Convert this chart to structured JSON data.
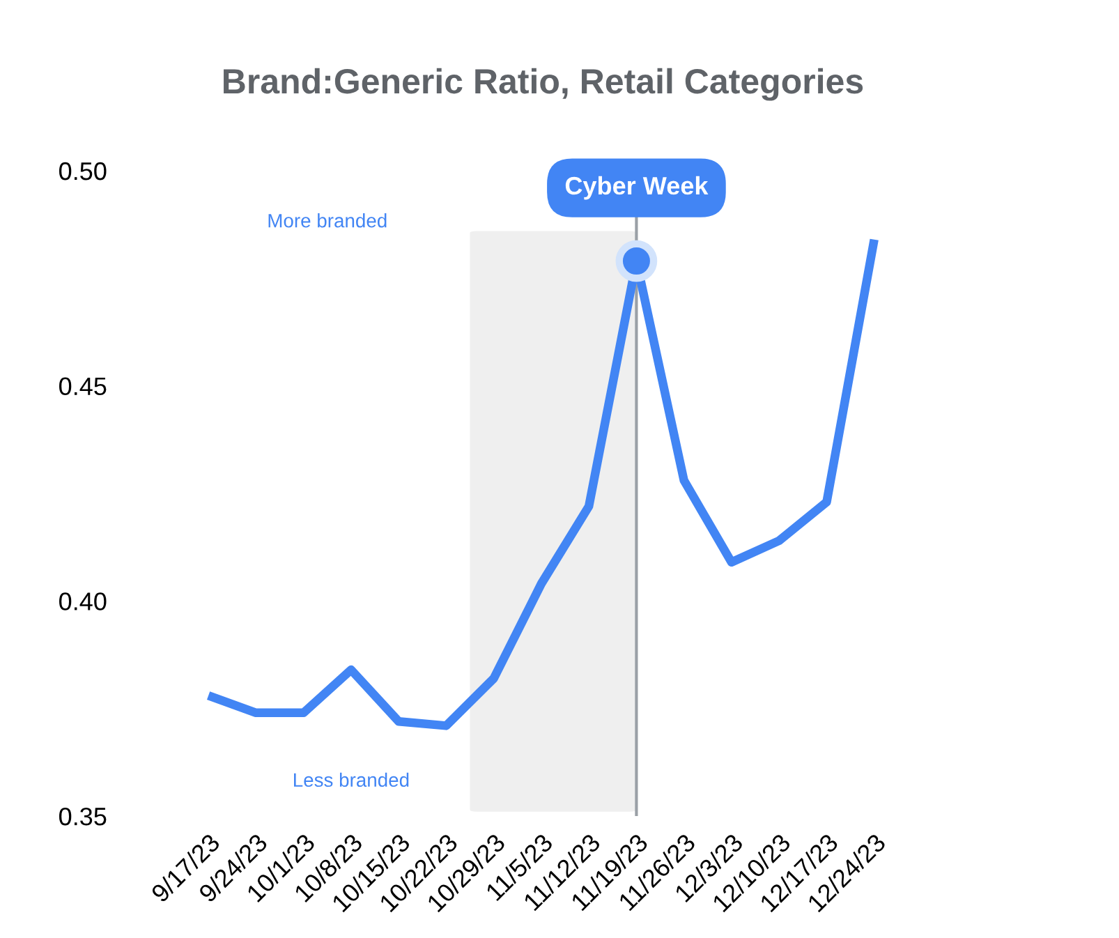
{
  "chart_data": {
    "type": "line",
    "title": "Brand:Generic Ratio, Retail Categories",
    "categories": [
      "9/17/23",
      "9/24/23",
      "10/1/23",
      "10/8/23",
      "10/15/23",
      "10/22/23",
      "10/29/23",
      "11/5/23",
      "11/12/23",
      "11/19/23",
      "11/26/23",
      "12/3/23",
      "12/10/23",
      "12/17/23",
      "12/24/23"
    ],
    "series": [
      {
        "color": "#4285f4",
        "values": [
          0.378,
          0.374,
          0.374,
          0.384,
          0.372,
          0.371,
          0.382,
          0.404,
          0.422,
          0.479,
          0.428,
          0.409,
          0.414,
          0.423,
          0.484
        ]
      },
      {
        "type": "scatter",
        "color": "#4285f4",
        "values": [
          null,
          null,
          null,
          null,
          null,
          null,
          null,
          null,
          null,
          0.479,
          null,
          null,
          null,
          null,
          null
        ]
      }
    ],
    "ylim": [
      0.35,
      0.5
    ],
    "yticks": [
      {
        "value": 0.35,
        "label": "0.35"
      },
      {
        "value": 0.4,
        "label": "0.40"
      },
      {
        "value": 0.45,
        "label": "0.45"
      },
      {
        "value": 0.5,
        "label": "0.50"
      }
    ],
    "ref_lines": [
      {
        "axis": "x",
        "value": "11/19/23",
        "label": "Cyber Week",
        "color": "#9aa0a6"
      }
    ],
    "bands": [
      {
        "axis": "x",
        "from": "10/29/23",
        "to": "11/19/23",
        "color": "#efefef"
      }
    ],
    "annotations": [
      "More branded",
      "Less branded"
    ],
    "grid": false,
    "legend": false
  }
}
